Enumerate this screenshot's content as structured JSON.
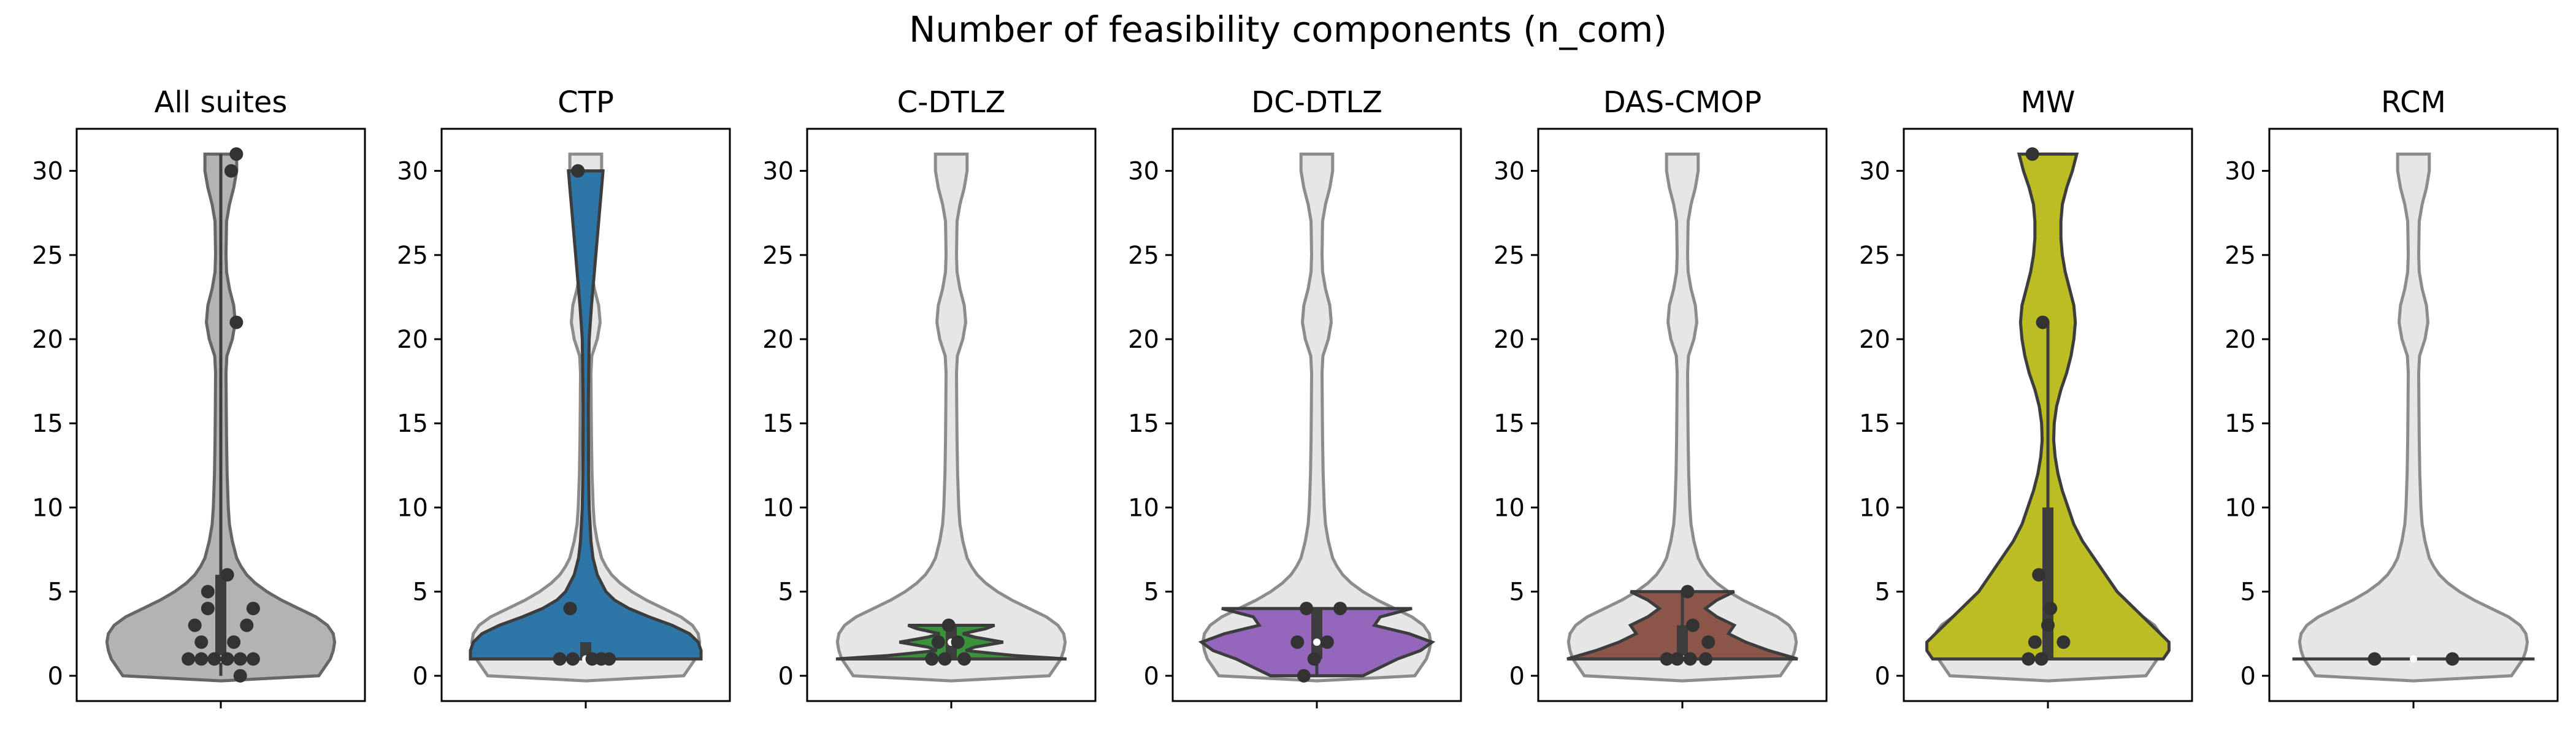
{
  "figure": {
    "suptitle": "Number of feasibility components (n_com)"
  },
  "colors": {
    "background_violin": "#e6e6e6",
    "background_outline": "#8c8c8c",
    "points": "#333333"
  },
  "chart_data": [
    {
      "type": "violin",
      "title": "All suites",
      "ylim": [
        -1.5,
        32.5
      ],
      "yticks": [
        0,
        5,
        10,
        15,
        20,
        25,
        30
      ],
      "color": "#b3b3b3",
      "grid": false,
      "points": [
        {
          "y": 0,
          "jitter": 0.15
        },
        {
          "y": 1,
          "jitter": -0.25
        },
        {
          "y": 1,
          "jitter": -0.15
        },
        {
          "y": 1,
          "jitter": -0.05
        },
        {
          "y": 1,
          "jitter": 0.05
        },
        {
          "y": 1,
          "jitter": 0.15
        },
        {
          "y": 1,
          "jitter": 0.25
        },
        {
          "y": 2,
          "jitter": -0.15
        },
        {
          "y": 2,
          "jitter": 0.1
        },
        {
          "y": 3,
          "jitter": -0.2
        },
        {
          "y": 3,
          "jitter": 0.2
        },
        {
          "y": 4,
          "jitter": -0.1
        },
        {
          "y": 4,
          "jitter": 0.25
        },
        {
          "y": 5,
          "jitter": -0.1
        },
        {
          "y": 6,
          "jitter": 0.05
        },
        {
          "y": 21,
          "jitter": 0.12
        },
        {
          "y": 30,
          "jitter": 0.08
        },
        {
          "y": 31,
          "jitter": 0.12
        }
      ],
      "box": {
        "q1": 1,
        "median": 1,
        "q3": 6,
        "whislo": 0,
        "whishi": 31
      }
    },
    {
      "type": "violin",
      "title": "CTP",
      "ylim": [
        -1.5,
        32.5
      ],
      "yticks": [
        0,
        5,
        10,
        15,
        20,
        25,
        30
      ],
      "color": "#2e75a8",
      "grid": false,
      "points": [
        {
          "y": 1,
          "jitter": -0.2
        },
        {
          "y": 1,
          "jitter": -0.1
        },
        {
          "y": 1,
          "jitter": 0.05
        },
        {
          "y": 1,
          "jitter": 0.12
        },
        {
          "y": 1,
          "jitter": 0.18
        },
        {
          "y": 4,
          "jitter": -0.12
        },
        {
          "y": 30,
          "jitter": -0.06
        }
      ],
      "box": {
        "q1": 1,
        "median": 1,
        "q3": 2,
        "whislo": 1,
        "whishi": 2
      }
    },
    {
      "type": "violin",
      "title": "C-DTLZ",
      "ylim": [
        -1.5,
        32.5
      ],
      "yticks": [
        0,
        5,
        10,
        15,
        20,
        25,
        30
      ],
      "color": "#3a923a",
      "grid": false,
      "points": [
        {
          "y": 1,
          "jitter": -0.15
        },
        {
          "y": 1,
          "jitter": -0.05
        },
        {
          "y": 1,
          "jitter": 0.1
        },
        {
          "y": 2,
          "jitter": 0.05
        },
        {
          "y": 2,
          "jitter": -0.1
        },
        {
          "y": 3,
          "jitter": -0.02
        }
      ],
      "box": {
        "q1": 1,
        "median": 2,
        "q3": 3,
        "whislo": 1,
        "whishi": 3
      }
    },
    {
      "type": "violin",
      "title": "DC-DTLZ",
      "ylim": [
        -1.5,
        32.5
      ],
      "yticks": [
        0,
        5,
        10,
        15,
        20,
        25,
        30
      ],
      "color": "#9467bd",
      "grid": false,
      "points": [
        {
          "y": 0,
          "jitter": -0.1
        },
        {
          "y": 1,
          "jitter": -0.02
        },
        {
          "y": 2,
          "jitter": -0.15
        },
        {
          "y": 2,
          "jitter": 0.08
        },
        {
          "y": 4,
          "jitter": -0.08
        },
        {
          "y": 4,
          "jitter": 0.18
        }
      ],
      "box": {
        "q1": 1,
        "median": 2,
        "q3": 4,
        "whislo": 0,
        "whishi": 4
      }
    },
    {
      "type": "violin",
      "title": "DAS-CMOP",
      "ylim": [
        -1.5,
        32.5
      ],
      "yticks": [
        0,
        5,
        10,
        15,
        20,
        25,
        30
      ],
      "color": "#8c564b",
      "grid": false,
      "points": [
        {
          "y": 1,
          "jitter": -0.12
        },
        {
          "y": 1,
          "jitter": -0.04
        },
        {
          "y": 1,
          "jitter": 0.06
        },
        {
          "y": 1,
          "jitter": 0.18
        },
        {
          "y": 2,
          "jitter": 0.2
        },
        {
          "y": 3,
          "jitter": 0.08
        },
        {
          "y": 5,
          "jitter": 0.04
        }
      ],
      "box": {
        "q1": 1,
        "median": 1,
        "q3": 3,
        "whislo": 1,
        "whishi": 5
      }
    },
    {
      "type": "violin",
      "title": "MW",
      "ylim": [
        -1.5,
        32.5
      ],
      "yticks": [
        0,
        5,
        10,
        15,
        20,
        25,
        30
      ],
      "color": "#bcbd22",
      "grid": false,
      "points": [
        {
          "y": 1,
          "jitter": -0.15
        },
        {
          "y": 1,
          "jitter": -0.05
        },
        {
          "y": 2,
          "jitter": -0.1
        },
        {
          "y": 2,
          "jitter": 0.12
        },
        {
          "y": 3,
          "jitter": 0.0
        },
        {
          "y": 4,
          "jitter": 0.02
        },
        {
          "y": 6,
          "jitter": -0.07
        },
        {
          "y": 21,
          "jitter": -0.04
        },
        {
          "y": 31,
          "jitter": -0.12
        }
      ],
      "box": {
        "q1": 1,
        "median": 3,
        "q3": 10,
        "whislo": 1,
        "whishi": 21
      }
    },
    {
      "type": "violin",
      "title": "RCM",
      "ylim": [
        -1.5,
        32.5
      ],
      "yticks": [
        0,
        5,
        10,
        15,
        20,
        25,
        30
      ],
      "color": "#7f7f7f",
      "grid": false,
      "points": [
        {
          "y": 1,
          "jitter": -0.3
        },
        {
          "y": 1,
          "jitter": 0.3
        }
      ],
      "box": {
        "q1": 1,
        "median": 1,
        "q3": 1,
        "whislo": 1,
        "whishi": 1
      }
    }
  ],
  "violin_shapes": {
    "background": [
      [
        -0.3,
        0
      ],
      [
        0,
        0.34
      ],
      [
        0.5,
        0.36
      ],
      [
        1,
        0.38
      ],
      [
        1.5,
        0.39
      ],
      [
        2,
        0.395
      ],
      [
        2.5,
        0.39
      ],
      [
        3,
        0.37
      ],
      [
        3.5,
        0.33
      ],
      [
        4,
        0.27
      ],
      [
        4.5,
        0.21
      ],
      [
        5,
        0.16
      ],
      [
        5.5,
        0.12
      ],
      [
        6,
        0.09
      ],
      [
        6.5,
        0.07
      ],
      [
        7,
        0.055
      ],
      [
        8,
        0.04
      ],
      [
        9,
        0.03
      ],
      [
        10,
        0.026
      ],
      [
        12,
        0.022
      ],
      [
        14,
        0.02
      ],
      [
        16,
        0.019
      ],
      [
        18,
        0.018
      ],
      [
        19,
        0.021
      ],
      [
        20,
        0.04
      ],
      [
        21,
        0.05
      ],
      [
        22,
        0.045
      ],
      [
        23,
        0.03
      ],
      [
        24,
        0.02
      ],
      [
        25,
        0.018
      ],
      [
        27,
        0.02
      ],
      [
        28,
        0.03
      ],
      [
        29,
        0.045
      ],
      [
        30,
        0.055
      ],
      [
        31,
        0.055
      ]
    ],
    "CTP": [
      [
        1,
        0.4
      ],
      [
        1.5,
        0.4
      ],
      [
        2,
        0.39
      ],
      [
        2.5,
        0.36
      ],
      [
        3,
        0.3
      ],
      [
        3.5,
        0.22
      ],
      [
        4,
        0.15
      ],
      [
        4.5,
        0.1
      ],
      [
        5,
        0.07
      ],
      [
        6,
        0.04
      ],
      [
        7,
        0.025
      ],
      [
        8,
        0.018
      ],
      [
        10,
        0.012
      ],
      [
        12,
        0.01
      ],
      [
        16,
        0.009
      ],
      [
        20,
        0.012
      ],
      [
        22,
        0.02
      ],
      [
        24,
        0.03
      ],
      [
        26,
        0.04
      ],
      [
        28,
        0.05
      ],
      [
        29,
        0.055
      ],
      [
        30,
        0.06
      ]
    ],
    "C-DTLZ": [
      [
        1,
        0.4
      ],
      [
        1.2,
        0.22
      ],
      [
        1.5,
        0.05
      ],
      [
        1.7,
        0.08
      ],
      [
        2,
        0.18
      ],
      [
        2.3,
        0.08
      ],
      [
        2.5,
        0.04
      ],
      [
        2.8,
        0.12
      ],
      [
        3,
        0.15
      ]
    ],
    "DC-DTLZ": [
      [
        0,
        0.16
      ],
      [
        0.5,
        0.22
      ],
      [
        1,
        0.28
      ],
      [
        1.5,
        0.36
      ],
      [
        2,
        0.4
      ],
      [
        2.5,
        0.32
      ],
      [
        3,
        0.2
      ],
      [
        3.5,
        0.22
      ],
      [
        4,
        0.33
      ]
    ],
    "DAS-CMOP": [
      [
        1,
        0.4
      ],
      [
        1.5,
        0.3
      ],
      [
        2,
        0.22
      ],
      [
        2.5,
        0.16
      ],
      [
        3,
        0.18
      ],
      [
        3.5,
        0.12
      ],
      [
        4,
        0.08
      ],
      [
        4.5,
        0.12
      ],
      [
        5,
        0.18
      ]
    ],
    "MW": [
      [
        1,
        0.4
      ],
      [
        1.5,
        0.42
      ],
      [
        2,
        0.42
      ],
      [
        2.5,
        0.39
      ],
      [
        3,
        0.36
      ],
      [
        4,
        0.3
      ],
      [
        5,
        0.24
      ],
      [
        6,
        0.2
      ],
      [
        7,
        0.16
      ],
      [
        8,
        0.12
      ],
      [
        9,
        0.09
      ],
      [
        10,
        0.07
      ],
      [
        11,
        0.05
      ],
      [
        12,
        0.035
      ],
      [
        13,
        0.025
      ],
      [
        14,
        0.02
      ],
      [
        15,
        0.022
      ],
      [
        16,
        0.03
      ],
      [
        17,
        0.045
      ],
      [
        18,
        0.065
      ],
      [
        19,
        0.08
      ],
      [
        20,
        0.09
      ],
      [
        21,
        0.095
      ],
      [
        22,
        0.09
      ],
      [
        23,
        0.075
      ],
      [
        24,
        0.06
      ],
      [
        25,
        0.05
      ],
      [
        26,
        0.045
      ],
      [
        27,
        0.045
      ],
      [
        28,
        0.05
      ],
      [
        29,
        0.065
      ],
      [
        30,
        0.085
      ],
      [
        31,
        0.1
      ]
    ],
    "RCM": [
      [
        1,
        0.42
      ],
      [
        1,
        0.42
      ]
    ]
  }
}
